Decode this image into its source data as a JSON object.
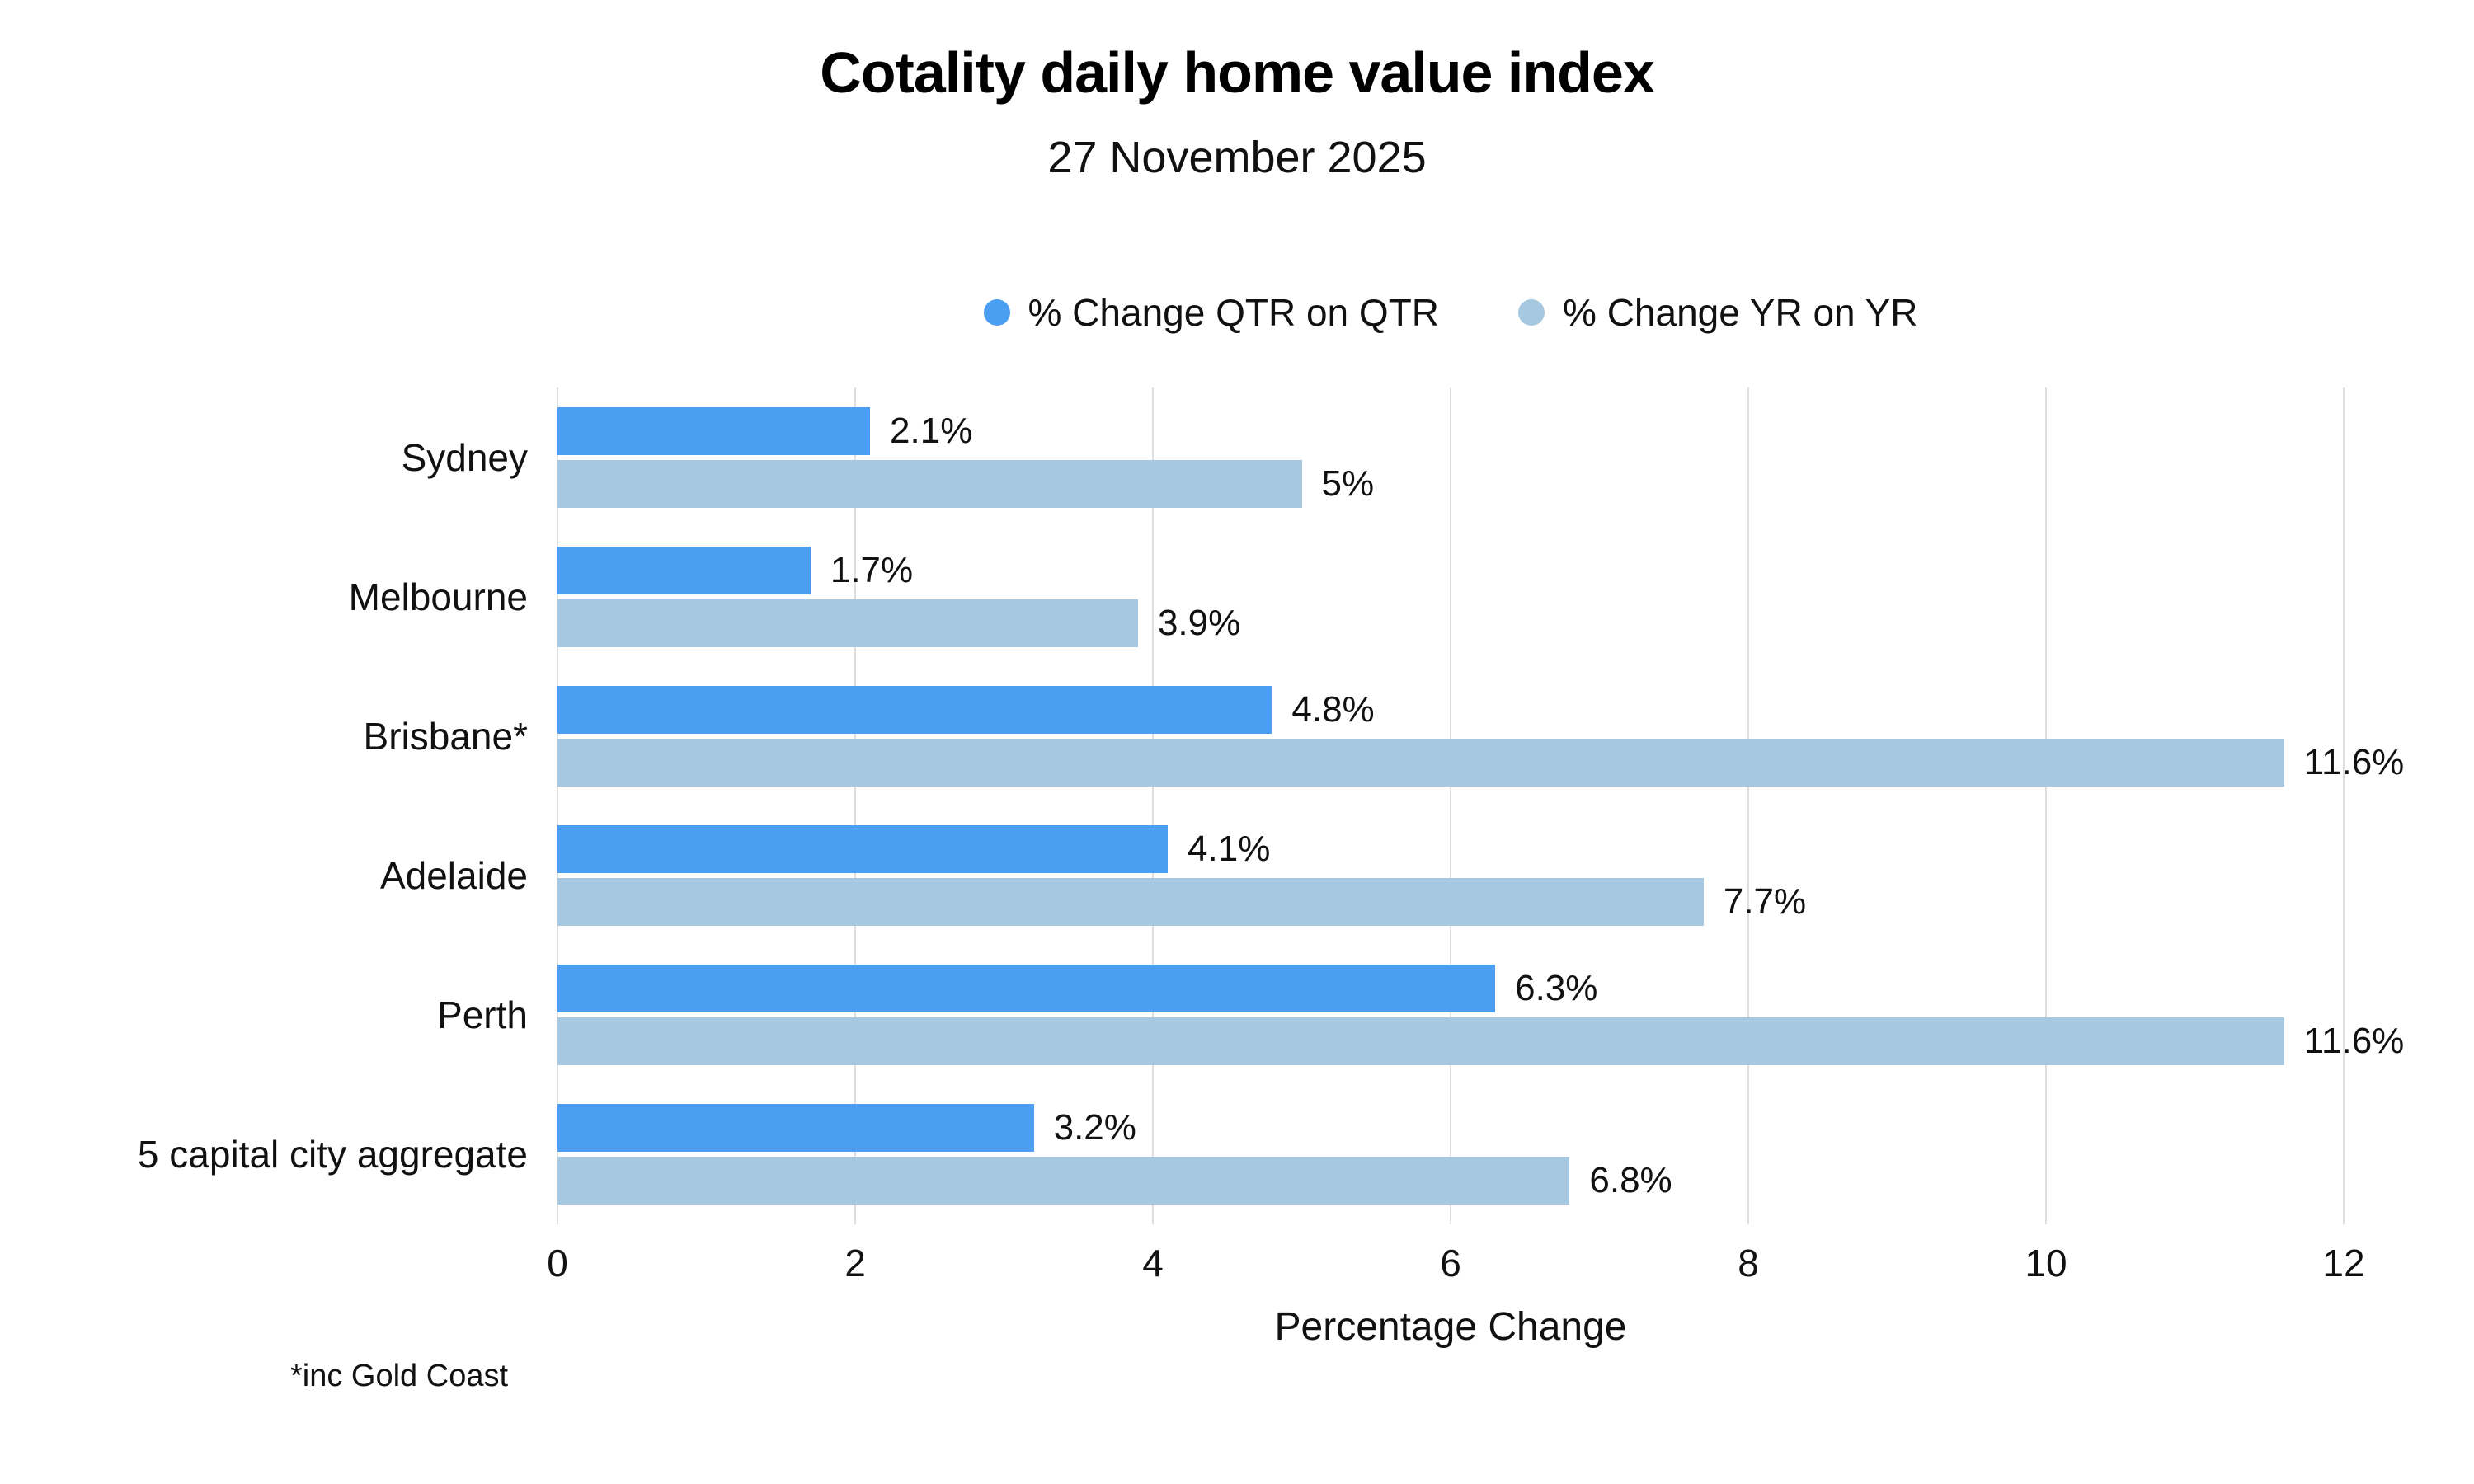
{
  "header": {
    "title": "Cotality daily home value index",
    "subtitle": "27 November 2025"
  },
  "legend": {
    "items": [
      {
        "label": "% Change QTR on QTR",
        "color": "#4C9EF2"
      },
      {
        "label": "% Change YR on YR",
        "color": "#A6C8E0"
      }
    ]
  },
  "chart_data": {
    "type": "bar",
    "orientation": "horizontal",
    "title": "Cotality daily home value index",
    "subtitle": "27 November 2025",
    "categories": [
      "Sydney",
      "Melbourne",
      "Brisbane*",
      "Adelaide",
      "Perth",
      "5 capital city aggregate"
    ],
    "series": [
      {
        "name": "% Change QTR on QTR",
        "color": "#4C9EF2",
        "values": [
          2.1,
          1.7,
          4.8,
          4.1,
          6.3,
          3.2
        ],
        "labels": [
          "2.1%",
          "1.7%",
          "4.8%",
          "4.1%",
          "6.3%",
          "3.2%"
        ]
      },
      {
        "name": "% Change YR on YR",
        "color": "#A6C8E0",
        "values": [
          5,
          3.9,
          11.6,
          7.7,
          11.6,
          6.8
        ],
        "labels": [
          "5%",
          "3.9%",
          "11.6%",
          "7.7%",
          "11.6%",
          "6.8%"
        ]
      }
    ],
    "xlabel": "Percentage Change",
    "xticks": [
      0,
      2,
      4,
      6,
      8,
      10,
      12
    ],
    "xlim": [
      0,
      12
    ],
    "grid": true,
    "gridline_color": "#dedede",
    "legend_position": "top-center"
  },
  "footnote": "*inc Gold Coast"
}
